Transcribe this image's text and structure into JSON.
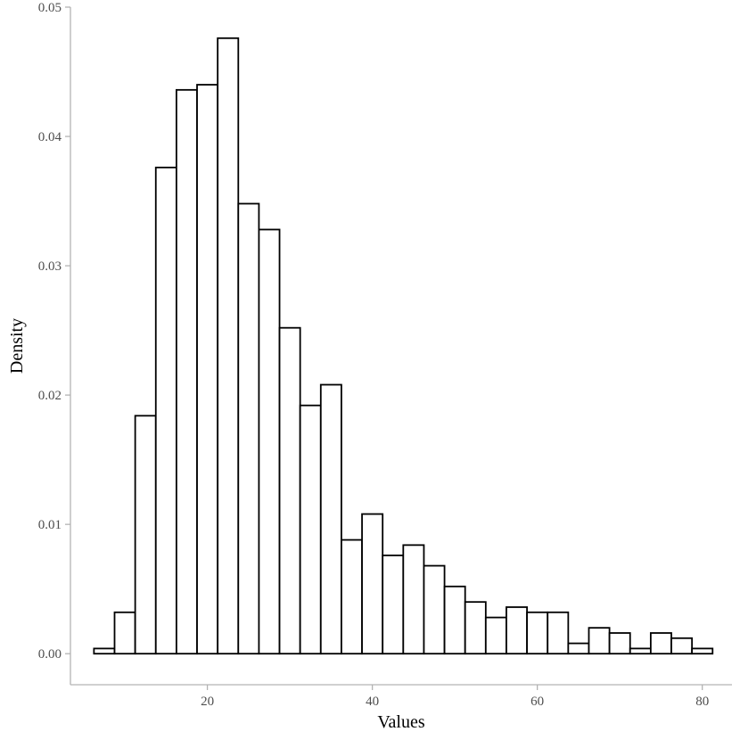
{
  "chart_data": {
    "type": "bar",
    "title": "",
    "xlabel": "Values",
    "ylabel": "Density",
    "xlim": [
      3.4,
      83.6
    ],
    "ylim": [
      -0.0024,
      0.05
    ],
    "x_ticks": [
      20,
      40,
      60,
      80
    ],
    "x_tick_labels": [
      "20",
      "40",
      "60",
      "80"
    ],
    "y_ticks": [
      0.0,
      0.01,
      0.02,
      0.03,
      0.04,
      0.05
    ],
    "y_tick_labels": [
      "0.00",
      "0.01",
      "0.02",
      "0.03",
      "0.04",
      "0.05"
    ],
    "grid": false,
    "legend": "none",
    "bar_fill": "#ffffff",
    "bar_outline": "#000000",
    "bins": [
      {
        "x0": 6.25,
        "x1": 8.75,
        "density": 0.0004
      },
      {
        "x0": 8.75,
        "x1": 11.25,
        "density": 0.0032
      },
      {
        "x0": 11.25,
        "x1": 13.75,
        "density": 0.0184
      },
      {
        "x0": 13.75,
        "x1": 16.25,
        "density": 0.0376
      },
      {
        "x0": 16.25,
        "x1": 18.75,
        "density": 0.0436
      },
      {
        "x0": 18.75,
        "x1": 21.25,
        "density": 0.044
      },
      {
        "x0": 21.25,
        "x1": 23.75,
        "density": 0.0476
      },
      {
        "x0": 23.75,
        "x1": 26.25,
        "density": 0.0348
      },
      {
        "x0": 26.25,
        "x1": 28.75,
        "density": 0.0328
      },
      {
        "x0": 28.75,
        "x1": 31.25,
        "density": 0.0252
      },
      {
        "x0": 31.25,
        "x1": 33.75,
        "density": 0.0192
      },
      {
        "x0": 33.75,
        "x1": 36.25,
        "density": 0.0208
      },
      {
        "x0": 36.25,
        "x1": 38.75,
        "density": 0.0088
      },
      {
        "x0": 38.75,
        "x1": 41.25,
        "density": 0.0108
      },
      {
        "x0": 41.25,
        "x1": 43.75,
        "density": 0.0076
      },
      {
        "x0": 43.75,
        "x1": 46.25,
        "density": 0.0084
      },
      {
        "x0": 46.25,
        "x1": 48.75,
        "density": 0.0068
      },
      {
        "x0": 48.75,
        "x1": 51.25,
        "density": 0.0052
      },
      {
        "x0": 51.25,
        "x1": 53.75,
        "density": 0.004
      },
      {
        "x0": 53.75,
        "x1": 56.25,
        "density": 0.0028
      },
      {
        "x0": 56.25,
        "x1": 58.75,
        "density": 0.0036
      },
      {
        "x0": 58.75,
        "x1": 61.25,
        "density": 0.0032
      },
      {
        "x0": 61.25,
        "x1": 63.75,
        "density": 0.0032
      },
      {
        "x0": 63.75,
        "x1": 66.25,
        "density": 0.0008
      },
      {
        "x0": 66.25,
        "x1": 68.75,
        "density": 0.002
      },
      {
        "x0": 68.75,
        "x1": 71.25,
        "density": 0.0016
      },
      {
        "x0": 71.25,
        "x1": 73.75,
        "density": 0.0004
      },
      {
        "x0": 73.75,
        "x1": 76.25,
        "density": 0.0016
      },
      {
        "x0": 76.25,
        "x1": 78.75,
        "density": 0.0012
      },
      {
        "x0": 78.75,
        "x1": 81.25,
        "density": 0.0004
      }
    ]
  }
}
